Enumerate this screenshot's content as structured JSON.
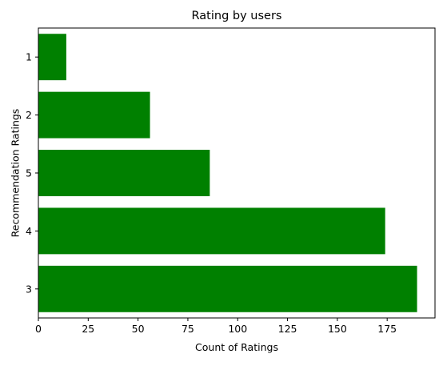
{
  "chart_data": {
    "type": "bar",
    "orientation": "horizontal",
    "title": "Rating by users",
    "xlabel": "Count of Ratings",
    "ylabel": "Recommendation Ratings",
    "categories": [
      "3",
      "4",
      "5",
      "2",
      "1"
    ],
    "values": [
      190,
      174,
      86,
      56,
      14
    ],
    "xlim": [
      0,
      199
    ],
    "xticks": [
      0,
      25,
      50,
      75,
      100,
      125,
      150,
      175
    ],
    "bar_color": "#008000",
    "grid": false,
    "legend": "none"
  }
}
